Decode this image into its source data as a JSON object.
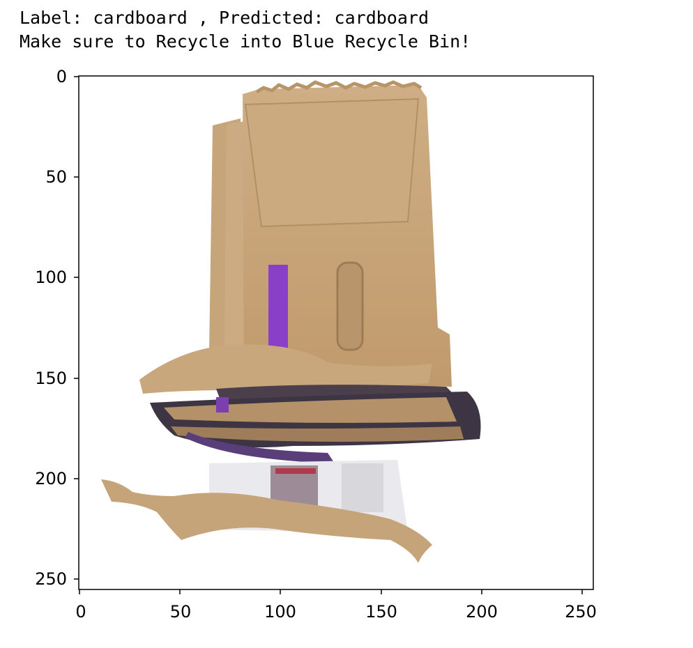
{
  "title": {
    "line1": "Label: cardboard , Predicted: cardboard",
    "line2": "Make sure to Recycle into Blue Recycle Bin!"
  },
  "image": {
    "description_icon": "cardboard-stack-photo",
    "colors": {
      "cardboard": "#c9a77d",
      "cardboard_dark": "#a88660",
      "purple": "#8a3fc8",
      "dark_edge": "#4a3f4a"
    }
  },
  "axes": {
    "x_ticks": [
      "0",
      "50",
      "100",
      "150",
      "200",
      "250"
    ],
    "y_ticks": [
      "0",
      "50",
      "100",
      "150",
      "200",
      "250"
    ],
    "xlim": [
      0,
      256
    ],
    "ylim": [
      256,
      0
    ]
  }
}
